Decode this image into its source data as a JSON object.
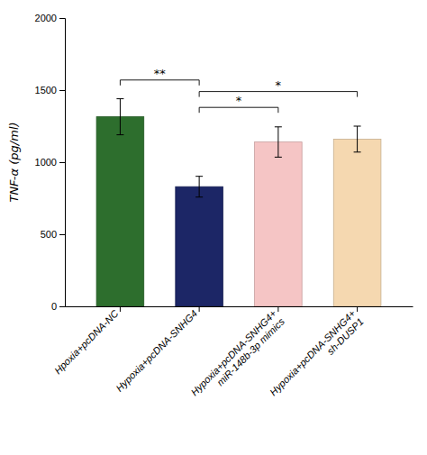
{
  "chart_data": {
    "type": "bar",
    "categories": [
      "Hpoxia+pcDNA-NC",
      "Hypoxia+pcDNA-SNHG4",
      "Hypoxia+pcDNA-SNHG4+\nmiR-148b-3p mimics",
      "Hypoxia+pcDNA-SNHG4+\nsh-DUSP1"
    ],
    "values": [
      1315,
      830,
      1140,
      1160
    ],
    "errors": [
      125,
      72,
      105,
      90
    ],
    "colors": [
      "#2d6e2d",
      "#1c2666",
      "#f5c5c5",
      "#f5d8b0"
    ],
    "ylabel": "TNF-α (pg/ml)",
    "ylim": [
      0,
      2000
    ],
    "yticks": [
      0,
      500,
      1000,
      1500,
      2000
    ],
    "grid": false,
    "annotations": [
      {
        "text": "**",
        "x1": 0,
        "x2": 1,
        "y": 1570
      },
      {
        "text": "*",
        "x1": 1,
        "x2": 2,
        "y": 1380
      },
      {
        "text": "*",
        "x1": 1,
        "x2": 3,
        "y": 1490
      }
    ]
  }
}
